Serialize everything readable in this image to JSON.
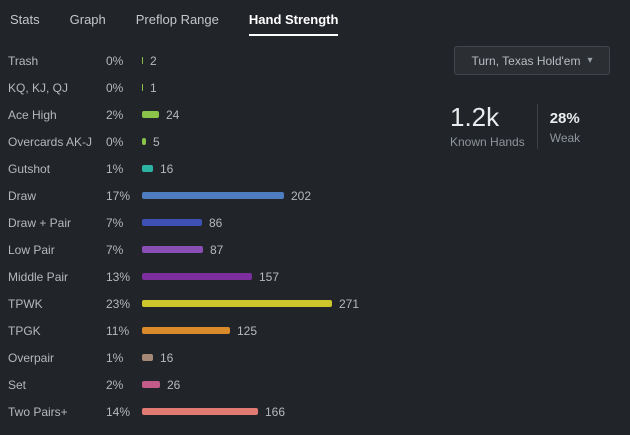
{
  "tabs": [
    {
      "label": "Stats",
      "active": false
    },
    {
      "label": "Graph",
      "active": false
    },
    {
      "label": "Preflop Range",
      "active": false
    },
    {
      "label": "Hand Strength",
      "active": true
    }
  ],
  "filter_dropdown": {
    "label": "Turn, Texas Hold'em"
  },
  "summary": {
    "known_hands_value": "1.2k",
    "known_hands_label": "Known Hands",
    "weak_value": "28%",
    "weak_label": "Weak"
  },
  "chart_data": {
    "type": "bar",
    "orientation": "horizontal",
    "title": "Hand Strength",
    "categories": [
      "Trash",
      "KQ, KJ, QJ",
      "Ace High",
      "Overcards AK-J",
      "Gutshot",
      "Draw",
      "Draw + Pair",
      "Low Pair",
      "Middle Pair",
      "TPWK",
      "TPGK",
      "Overpair",
      "Set",
      "Two Pairs+"
    ],
    "percents": [
      "0%",
      "0%",
      "2%",
      "0%",
      "1%",
      "17%",
      "7%",
      "7%",
      "13%",
      "23%",
      "11%",
      "1%",
      "2%",
      "14%"
    ],
    "values": [
      2,
      1,
      24,
      5,
      16,
      202,
      86,
      87,
      157,
      271,
      125,
      16,
      26,
      166
    ],
    "colors": [
      "#8bc34a",
      "#8bc34a",
      "#8bc34a",
      "#8bc34a",
      "#2bb3a3",
      "#4d7cc1",
      "#3f51b5",
      "#8a4fb5",
      "#7c2d9e",
      "#cec72b",
      "#d98a2b",
      "#a58876",
      "#c25a8a",
      "#e07a72"
    ],
    "max": 271,
    "xlim": [
      0,
      271
    ],
    "grid": false,
    "legend": false
  }
}
